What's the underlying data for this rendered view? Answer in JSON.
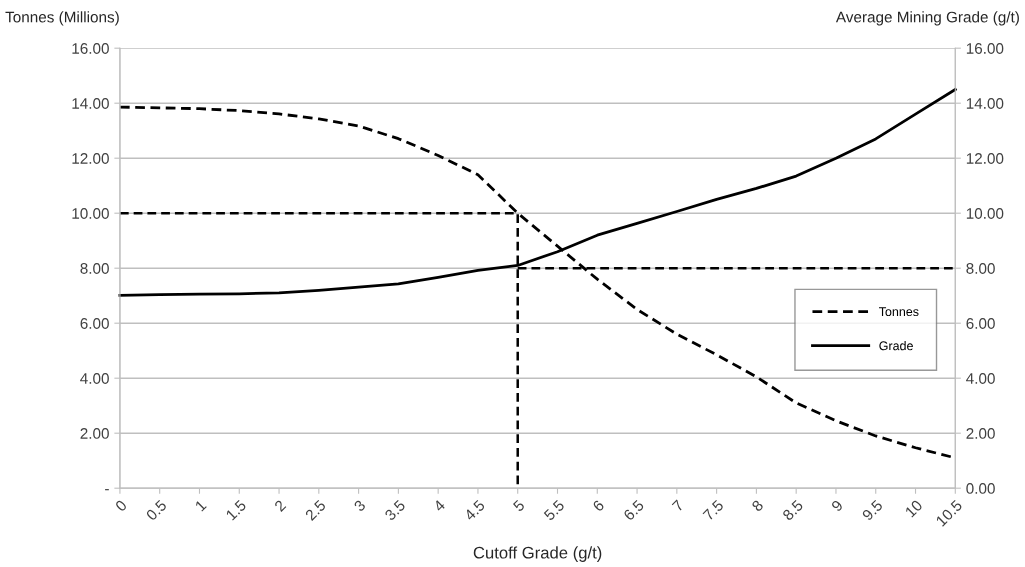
{
  "chart_data": {
    "type": "line",
    "xlabel": "Cutoff Grade (g/t)",
    "ylabel": "Tonnes (Millions)",
    "y2label": "Average Mining Grade (g/t)",
    "x": [
      0,
      0.5,
      1,
      1.5,
      2,
      2.5,
      3,
      3.5,
      4,
      4.5,
      5,
      5.5,
      6,
      6.5,
      7,
      7.5,
      8,
      8.5,
      9,
      9.5,
      10,
      10.5
    ],
    "xlim": [
      0,
      10.5
    ],
    "xticks": [
      0,
      0.5,
      1,
      1.5,
      2,
      2.5,
      3,
      3.5,
      4,
      4.5,
      5,
      5.5,
      6,
      6.5,
      7,
      7.5,
      8,
      8.5,
      9,
      9.5,
      10,
      10.5
    ],
    "ylim": [
      0,
      16
    ],
    "yticks": [
      {
        "value": 0,
        "label": "-"
      },
      {
        "value": 2,
        "label": "2.00"
      },
      {
        "value": 4,
        "label": "4.00"
      },
      {
        "value": 6,
        "label": "6.00"
      },
      {
        "value": 8,
        "label": "8.00"
      },
      {
        "value": 10,
        "label": "10.00"
      },
      {
        "value": 12,
        "label": "12.00"
      },
      {
        "value": 14,
        "label": "14.00"
      },
      {
        "value": 16,
        "label": "16.00"
      }
    ],
    "y2lim": [
      0,
      16
    ],
    "y2ticks": [
      {
        "value": 0,
        "label": "0.00"
      },
      {
        "value": 2,
        "label": "2.00"
      },
      {
        "value": 4,
        "label": "4.00"
      },
      {
        "value": 6,
        "label": "6.00"
      },
      {
        "value": 8,
        "label": "8.00"
      },
      {
        "value": 10,
        "label": "10.00"
      },
      {
        "value": 12,
        "label": "12.00"
      },
      {
        "value": 14,
        "label": "14.00"
      },
      {
        "value": 16,
        "label": "16.00"
      }
    ],
    "grid": "y",
    "legend": "right",
    "marker": "none",
    "series": [
      {
        "name": "Tonnes",
        "color": "#000000",
        "line_style": "dashed",
        "values": [
          13.86,
          13.83,
          13.8,
          13.73,
          13.61,
          13.43,
          13.17,
          12.71,
          12.1,
          11.4,
          10.0,
          8.8,
          7.6,
          6.5,
          5.6,
          4.85,
          4.05,
          3.1,
          2.45,
          1.9,
          1.47,
          1.1
        ]
      },
      {
        "name": "Grade",
        "color": "#000000",
        "line_style": "solid",
        "axis": "y2",
        "values": [
          7.01,
          7.04,
          7.06,
          7.07,
          7.1,
          7.19,
          7.31,
          7.43,
          7.67,
          7.92,
          8.1,
          8.6,
          9.2,
          9.63,
          10.06,
          10.5,
          10.9,
          11.35,
          12.0,
          12.7,
          13.6,
          14.5
        ]
      },
      {
        "color": "#000000",
        "line_style": "dashed",
        "x": [
          0,
          5,
          5
        ],
        "values": [
          10,
          10,
          0
        ]
      },
      {
        "color": "#000000",
        "line_style": "dashed",
        "axis": "y2",
        "x": [
          5,
          10.5
        ],
        "values": [
          8,
          8
        ]
      }
    ]
  }
}
